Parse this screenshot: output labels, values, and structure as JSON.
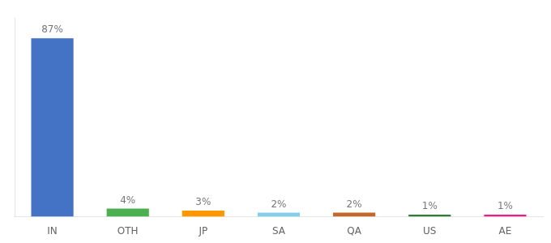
{
  "chart_data": {
    "type": "bar",
    "categories": [
      "IN",
      "OTH",
      "JP",
      "SA",
      "QA",
      "US",
      "AE"
    ],
    "values": [
      87,
      4,
      3,
      2,
      2,
      1,
      1
    ],
    "value_labels": [
      "87%",
      "4%",
      "3%",
      "2%",
      "2%",
      "1%",
      "1%"
    ],
    "data_labels": true,
    "colors": [
      "#4472c4",
      "#4caf50",
      "#ff9800",
      "#87ceeb",
      "#c0692a",
      "#2e7d32",
      "#e91e8c"
    ],
    "ylim": [
      0,
      97
    ],
    "tick_labels": "x",
    "grid": false
  }
}
